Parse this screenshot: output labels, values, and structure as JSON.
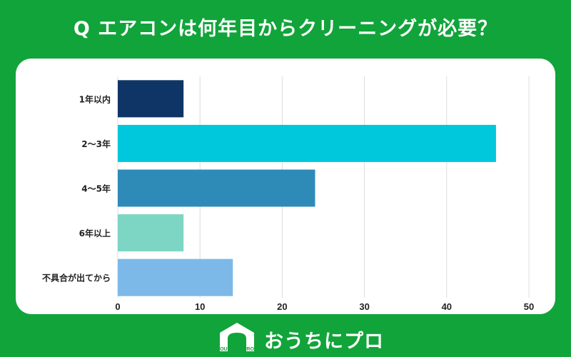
{
  "title": "Q エアコンは何年目からクリーニングが必要？",
  "brand": {
    "name": "おうちにプロ",
    "mark_text": "OUCHI ni PRO"
  },
  "colors": {
    "background": "#11a43a",
    "card": "#ffffff",
    "grid": "#dddddd"
  },
  "chart_data": {
    "type": "bar",
    "orientation": "horizontal",
    "title": "",
    "xlabel": "",
    "ylabel": "",
    "categories": [
      "1年以内",
      "2～3年",
      "4～5年",
      "6年以上",
      "不具合が出てから"
    ],
    "values": [
      8,
      46,
      24,
      8,
      14
    ],
    "colors": [
      "#0f3566",
      "#00c8dc",
      "#2e8bb8",
      "#7dd6c3",
      "#7cb9e8"
    ],
    "xlim": [
      0,
      50
    ],
    "xticks": [
      0,
      10,
      20,
      30,
      40,
      50
    ],
    "grid": true,
    "legend": "none"
  }
}
